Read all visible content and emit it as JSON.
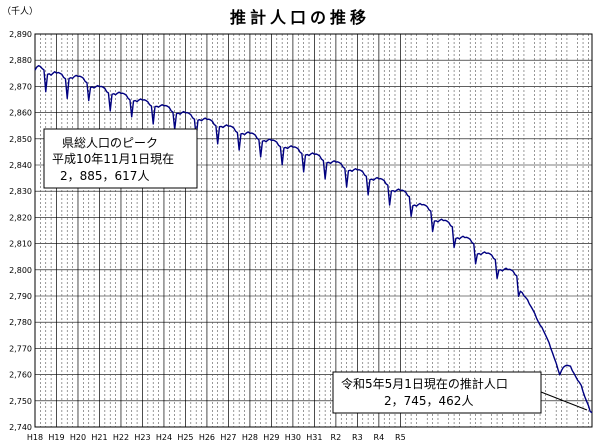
{
  "chart_data": {
    "type": "line",
    "title": "推計人口の推移",
    "unit_label": "（千人）",
    "ylim": [
      2740,
      2890
    ],
    "yticks": [
      2740,
      2750,
      2760,
      2770,
      2780,
      2790,
      2800,
      2810,
      2820,
      2830,
      2840,
      2850,
      2860,
      2870,
      2880,
      2890
    ],
    "ytick_labels": [
      "2,740",
      "2,750",
      "2,760",
      "2,770",
      "2,780",
      "2,790",
      "2,800",
      "2,810",
      "2,820",
      "2,830",
      "2,840",
      "2,850",
      "2,860",
      "2,870",
      "2,880",
      "2,890"
    ],
    "x_labels": [
      "H18",
      "H19",
      "H20",
      "H21",
      "H22",
      "H23",
      "H24",
      "H25",
      "H26",
      "H27",
      "H28",
      "H29",
      "H30",
      "H31",
      "R2",
      "R3",
      "R4",
      "R5"
    ],
    "grid": true,
    "line_color": "#000080",
    "series": [
      {
        "values": [
          2876.2,
          2877.4,
          2877.9,
          2877.6,
          2876.8,
          2876.3,
          2868,
          2874.6,
          2874.8,
          2874.3,
          2875,
          2875.6,
          2875.1,
          2875.3,
          2875,
          2874.6,
          2873.4,
          2872.9,
          2865.4,
          2873,
          2873.3,
          2873.1,
          2873.8,
          2874.2,
          2873.8,
          2873.9,
          2873.6,
          2873.1,
          2871.9,
          2871.4,
          2864.6,
          2869.6,
          2869.8,
          2869.4,
          2869.9,
          2870.3,
          2869.9,
          2870,
          2869.7,
          2869.2,
          2868,
          2867.5,
          2860.7,
          2867,
          2867.2,
          2866.8,
          2867.4,
          2867.8,
          2867.3,
          2867.4,
          2867.1,
          2866.6,
          2865.4,
          2864.9,
          2858.4,
          2864.4,
          2864.6,
          2864.2,
          2864.8,
          2865.2,
          2864.8,
          2864.9,
          2864.6,
          2864.1,
          2863,
          2862.5,
          2855.7,
          2862.3,
          2862.4,
          2862.1,
          2862.6,
          2863,
          2862.6,
          2862.7,
          2862.4,
          2861.9,
          2860.7,
          2860.2,
          2853.6,
          2859.6,
          2859.8,
          2859.4,
          2860,
          2860.4,
          2859.9,
          2860,
          2859.7,
          2859.2,
          2858,
          2857.5,
          2850.7,
          2857.1,
          2857.3,
          2856.9,
          2857.5,
          2857.9,
          2857.4,
          2857.5,
          2857.2,
          2856.7,
          2855.5,
          2855,
          2848.1,
          2854.6,
          2854.7,
          2854.3,
          2854.9,
          2855.3,
          2854.8,
          2854.9,
          2854.6,
          2854.1,
          2852.9,
          2852.4,
          2845.7,
          2851.9,
          2852,
          2851.6,
          2852.2,
          2852.6,
          2852.1,
          2852.2,
          2851.9,
          2851.4,
          2850.2,
          2849.7,
          2843.1,
          2849.1,
          2849.3,
          2848.9,
          2849.5,
          2849.9,
          2849.4,
          2849.5,
          2849.2,
          2848.7,
          2847.5,
          2847,
          2840.1,
          2846.5,
          2846.7,
          2846.3,
          2846.9,
          2847.3,
          2846.8,
          2846.9,
          2846.6,
          2846.1,
          2844.9,
          2844.4,
          2837.4,
          2843.8,
          2844,
          2843.6,
          2844.2,
          2844.6,
          2844.1,
          2844.2,
          2843.9,
          2843.4,
          2842.2,
          2841.7,
          2834.7,
          2840.9,
          2841,
          2840.6,
          2841.2,
          2841.6,
          2841.1,
          2841.2,
          2840.9,
          2840.4,
          2839.2,
          2838.7,
          2831.6,
          2837.8,
          2838,
          2837.6,
          2838.2,
          2838.6,
          2838.1,
          2838.2,
          2837.9,
          2837.4,
          2836.2,
          2835.7,
          2828.6,
          2834.4,
          2834.6,
          2834.2,
          2834.8,
          2835.2,
          2834.7,
          2834.8,
          2834.5,
          2834,
          2832.8,
          2832.3,
          2824.7,
          2830.1,
          2830.2,
          2829.8,
          2830.4,
          2830.8,
          2830.3,
          2830.4,
          2830.1,
          2829.6,
          2828.4,
          2827.9,
          2820.4,
          2824.5,
          2824.7,
          2824.3,
          2824.9,
          2825.3,
          2824.8,
          2824.9,
          2824.6,
          2824.1,
          2822.9,
          2822.4,
          2814.6,
          2818.6,
          2818.7,
          2818.3,
          2818.9,
          2819.3,
          2818.8,
          2818.9,
          2818.6,
          2818.1,
          2816.9,
          2816.4,
          2808.5,
          2812,
          2812.2,
          2811.8,
          2812.4,
          2812.8,
          2812.3,
          2812.4,
          2812.1,
          2811.6,
          2810.4,
          2809.9,
          2802.3,
          2806,
          2806.2,
          2805.8,
          2806.4,
          2806.8,
          2806.3,
          2806.4,
          2806.1,
          2805.6,
          2804.4,
          2803.9,
          2796.7,
          2799.9,
          2800,
          2799.6,
          2800.2,
          2800.6,
          2800.1,
          2800.2,
          2799.9,
          2799.4,
          2798.2,
          2797.7,
          2789.9,
          2791.8,
          2791.3,
          2790.1,
          2789.4,
          2788.6,
          2787,
          2785.9,
          2784.7,
          2783.4,
          2781.6,
          2780.2,
          2778.9,
          2778.1,
          2776.6,
          2775.2,
          2773.7,
          2772.2,
          2770,
          2768.2,
          2766.2,
          2764.4,
          2762,
          2759.9,
          2761.6,
          2762.8,
          2763.3,
          2763.6,
          2763.4,
          2763.2,
          2761.5,
          2760.4,
          2759.1,
          2757.8,
          2757,
          2755.9,
          2753.5,
          2751.5,
          2749.8,
          2748.2,
          2745.9,
          2745.5
        ]
      }
    ]
  },
  "annotations": {
    "peak_line1": "県総人口のピーク",
    "peak_line2": "平成10年11月1日現在",
    "peak_line3": "2，885，617人",
    "current_line1": "令和5年5月1日現在の推計人口",
    "current_line2": "2，745，462人"
  }
}
